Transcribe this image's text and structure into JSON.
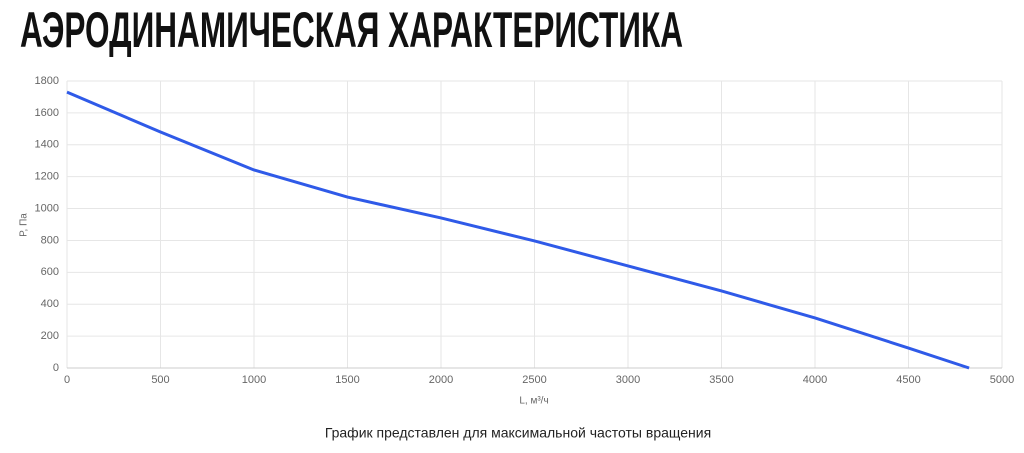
{
  "chart_data": {
    "type": "line",
    "title": "АЭРОДИНАМИЧЕСКАЯ ХАРАКТЕРИСТИКА",
    "xlabel": "L, м³/ч",
    "ylabel": "P, Па",
    "note": "График представлен для максимальной частоты вращения",
    "x": [
      0,
      500,
      1000,
      1500,
      2000,
      2500,
      3000,
      3500,
      4000,
      4500,
      4824
    ],
    "series": [
      {
        "name": "P",
        "color": "#2f5ae8",
        "values": [
          1730,
          1480,
          1242,
          1072,
          941,
          797,
          640,
          483,
          314,
          125,
          0
        ]
      }
    ],
    "xlim": [
      0,
      5000
    ],
    "xticks": [
      0,
      500,
      1000,
      1500,
      2000,
      2500,
      3000,
      3500,
      4000,
      4500,
      5000
    ],
    "ylim": [
      0,
      1800
    ],
    "yticks": [
      0,
      200,
      400,
      600,
      800,
      1000,
      1200,
      1400,
      1600,
      1800
    ],
    "grid": true
  }
}
